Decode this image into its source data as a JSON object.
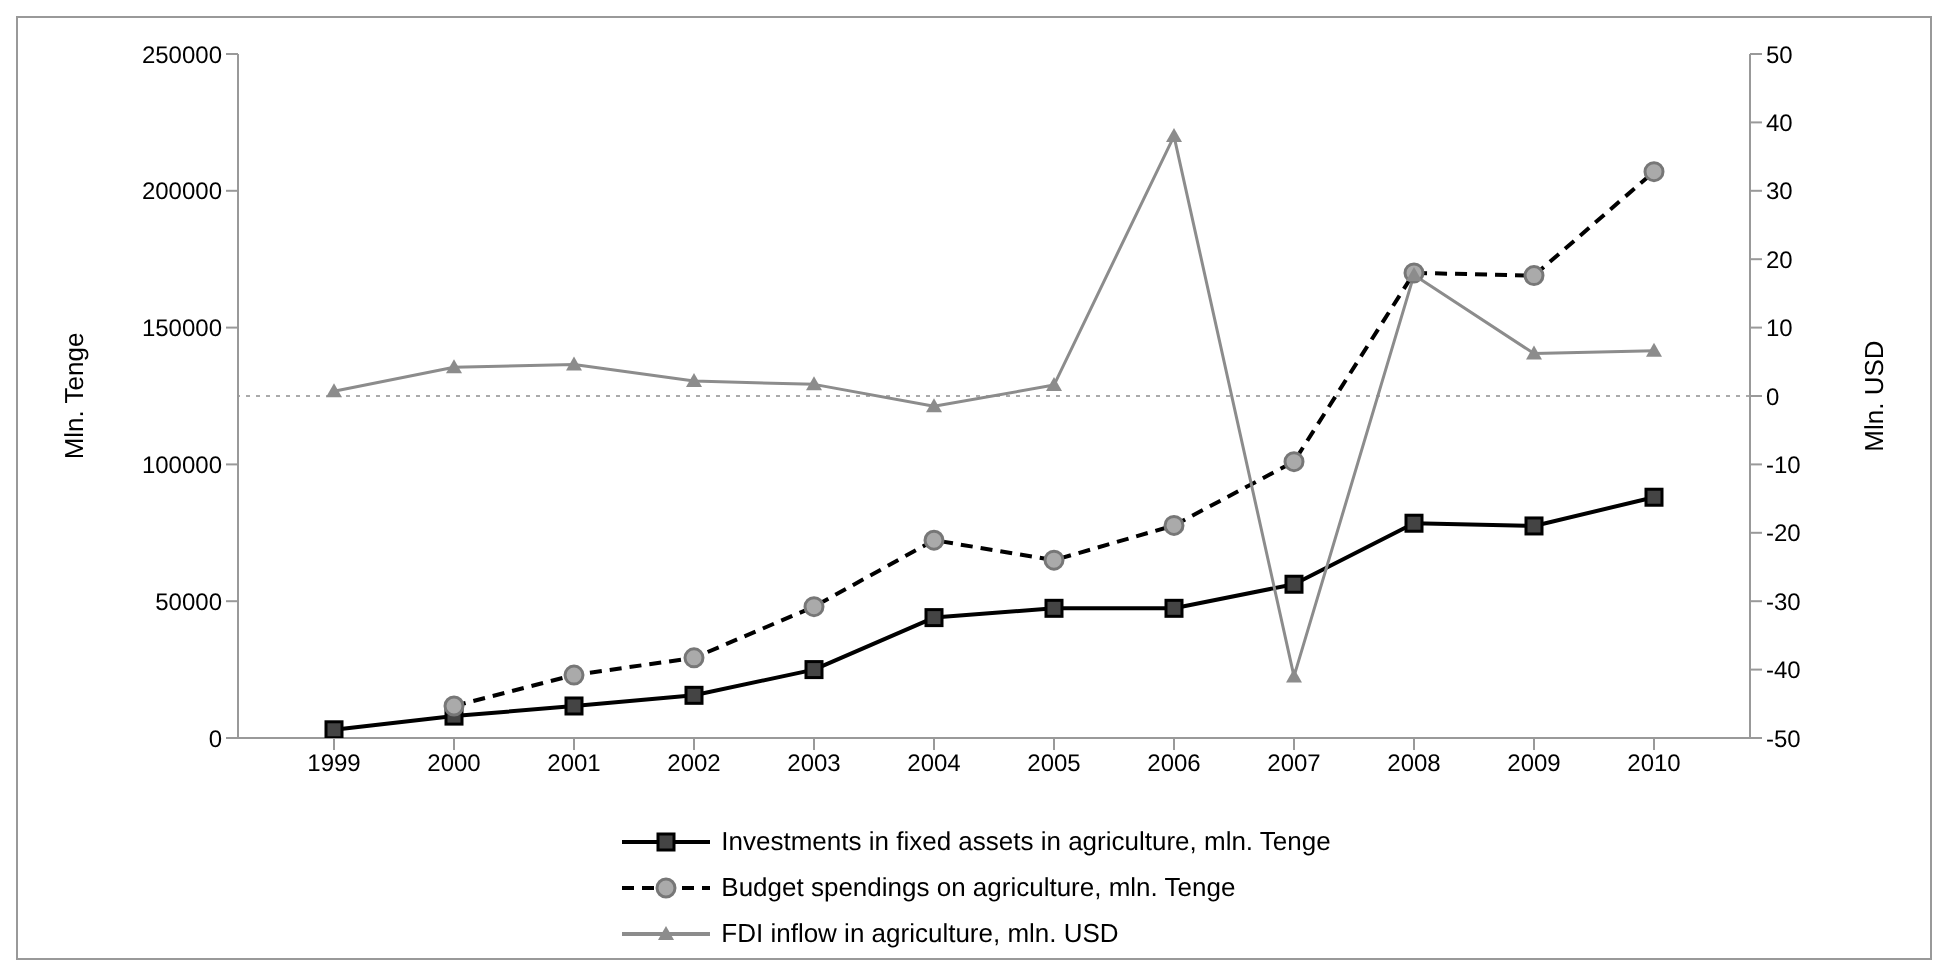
{
  "chart_data": {
    "type": "line",
    "ylabel": "Mln. Tenge",
    "y2label": "Mln. USD",
    "categories": [
      "1999",
      "2000",
      "2001",
      "2002",
      "2003",
      "2004",
      "2005",
      "2006",
      "2007",
      "2008",
      "2009",
      "2010"
    ],
    "series": [
      {
        "name": "Investments in fixed assets in agriculture, mln. Tenge",
        "color": "#000000",
        "marker": "square",
        "line_style": "solid",
        "values": [
          3000,
          8000,
          11700,
          15600,
          25000,
          44000,
          47400,
          47400,
          56200,
          78500,
          77500,
          88000
        ]
      },
      {
        "name": "Budget spendings on agriculture, mln. Tenge",
        "color": "#000000",
        "marker": "circle",
        "line_style": "dashed",
        "values": [
          null,
          11700,
          23000,
          29300,
          48000,
          72300,
          65000,
          77700,
          101000,
          170000,
          169000,
          207000
        ]
      },
      {
        "name": "FDI inflow in agriculture, mln. USD",
        "color": "#8c8c8c",
        "marker": "triangle",
        "line_style": "solid",
        "axis": "y2",
        "values": [
          0.7,
          4.2,
          4.6,
          2.2,
          1.7,
          -1.5,
          1.6,
          38,
          -41,
          17.7,
          6.2,
          6.6
        ]
      }
    ],
    "ylim": [
      0,
      250000
    ],
    "yticks": [
      0,
      50000,
      100000,
      150000,
      200000,
      250000
    ],
    "y2lim": [
      -50,
      50
    ],
    "y2ticks": [
      -50,
      -40,
      -30,
      -20,
      -10,
      0,
      10,
      20,
      30,
      40,
      50
    ],
    "ref_lines": [
      {
        "axis": "y2",
        "value": 0,
        "color": "#aaaaaa",
        "line_style": "dotted"
      }
    ],
    "grid": false,
    "legend": "bottom"
  }
}
